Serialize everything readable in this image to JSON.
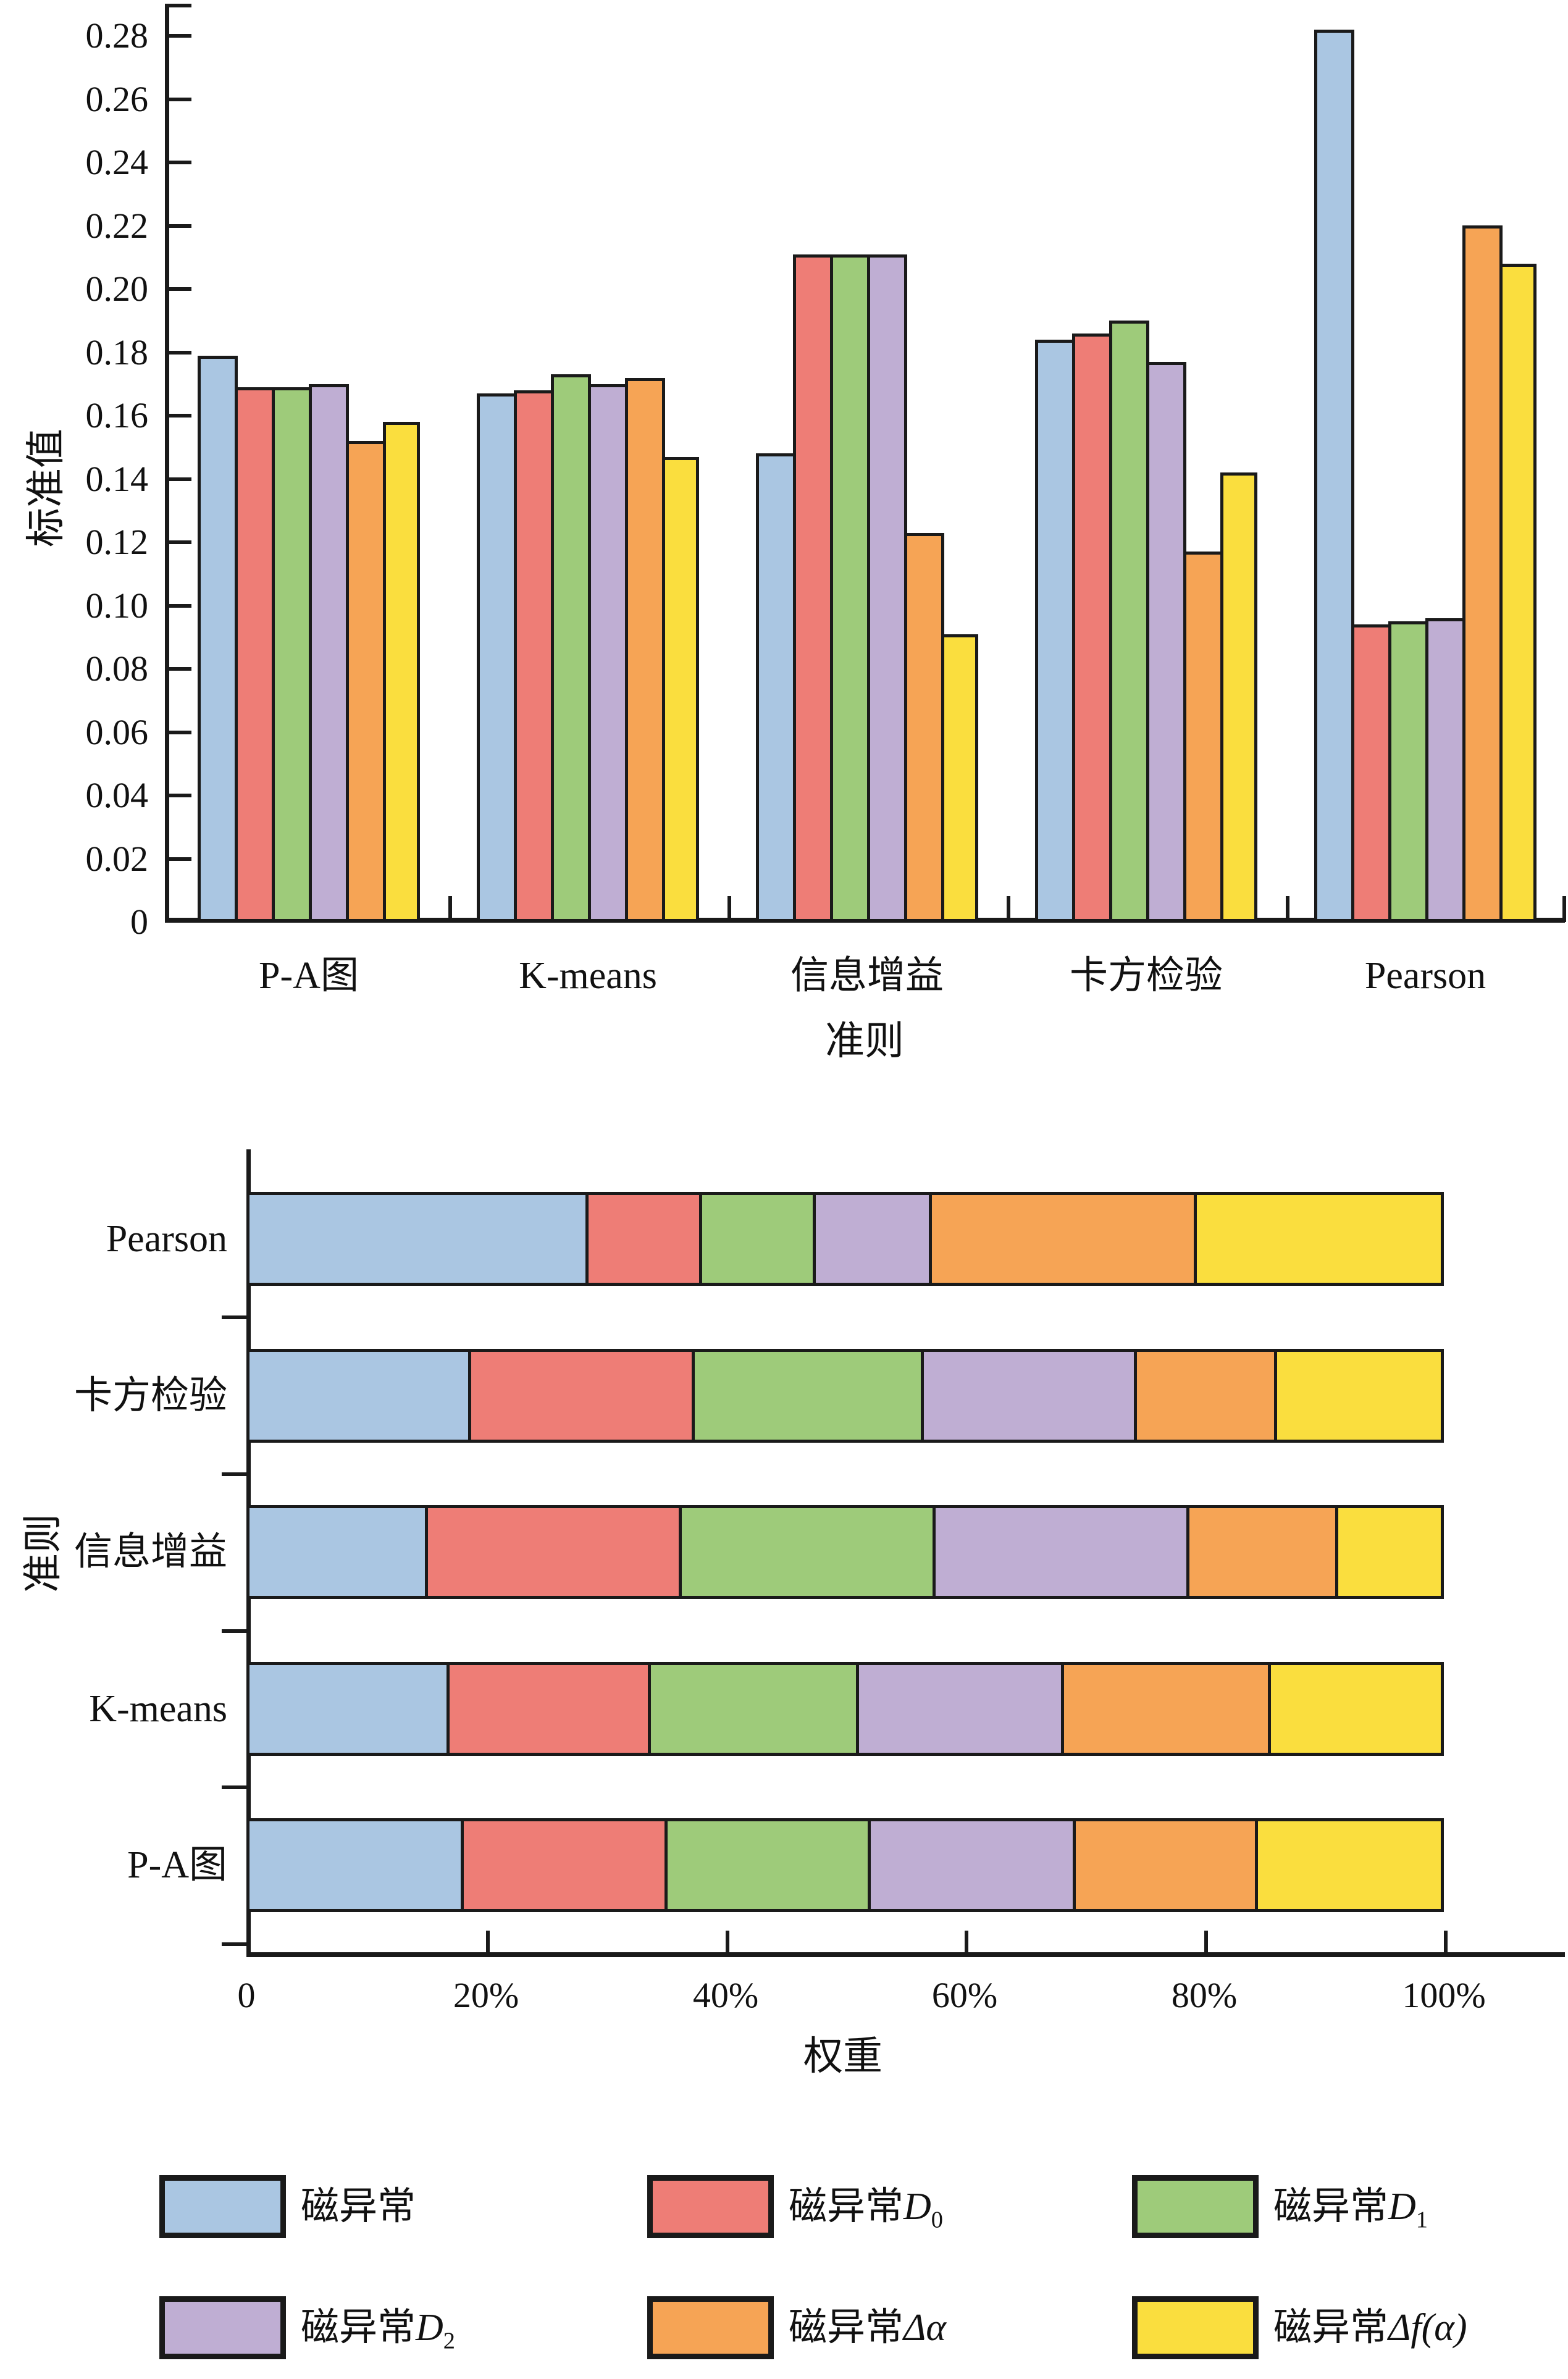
{
  "figure": {
    "background": "#ffffff",
    "axis_color": "#1a1a1a",
    "bar_border_color": "#1a1a1a",
    "series_colors": [
      "#aac6e2",
      "#ee7d76",
      "#9ecb7a",
      "#bfaed3",
      "#f6a455",
      "#fade3e"
    ]
  },
  "chart_data": [
    {
      "type": "bar",
      "orientation": "vertical-grouped",
      "title": "",
      "xlabel": "准则",
      "ylabel": "标准值",
      "categories": [
        "P-A图",
        "K-means",
        "信息增益",
        "卡方检验",
        "Pearson"
      ],
      "series": [
        {
          "name": "磁异常",
          "values": [
            0.179,
            0.167,
            0.148,
            0.184,
            0.282
          ]
        },
        {
          "name": "磁异常D0",
          "values": [
            0.169,
            0.168,
            0.211,
            0.186,
            0.094
          ]
        },
        {
          "name": "磁异常D1",
          "values": [
            0.169,
            0.173,
            0.211,
            0.19,
            0.095
          ]
        },
        {
          "name": "磁异常D2",
          "values": [
            0.17,
            0.17,
            0.211,
            0.177,
            0.096
          ]
        },
        {
          "name": "磁异常Δα",
          "values": [
            0.152,
            0.172,
            0.123,
            0.117,
            0.22
          ]
        },
        {
          "name": "磁异常Δf(α)",
          "values": [
            0.158,
            0.147,
            0.091,
            0.142,
            0.208
          ]
        }
      ],
      "ylim": [
        0,
        0.29
      ],
      "yticks": [
        "0",
        "0.02",
        "0.04",
        "0.06",
        "0.08",
        "0.10",
        "0.12",
        "0.14",
        "0.16",
        "0.18",
        "0.20",
        "0.22",
        "0.24",
        "0.26",
        "0.28"
      ],
      "grid": false,
      "legend_position": "bottom-of-figure"
    },
    {
      "type": "bar",
      "orientation": "horizontal-stacked",
      "title": "",
      "xlabel": "权重",
      "ylabel": "准则",
      "categories": [
        "Pearson",
        "卡方检验",
        "信息增益",
        "K-means",
        "P-A图"
      ],
      "series": [
        {
          "name": "磁异常",
          "values": [
            28.3,
            18.5,
            14.9,
            16.7,
            17.9
          ]
        },
        {
          "name": "磁异常D0",
          "values": [
            9.5,
            18.7,
            21.2,
            16.8,
            17.0
          ]
        },
        {
          "name": "磁异常D1",
          "values": [
            9.5,
            19.1,
            21.2,
            17.4,
            17.0
          ]
        },
        {
          "name": "磁异常D2",
          "values": [
            9.7,
            17.8,
            21.2,
            17.1,
            17.1
          ]
        },
        {
          "name": "磁异常Δα",
          "values": [
            22.1,
            11.7,
            12.4,
            17.3,
            15.2
          ]
        },
        {
          "name": "磁异常Δf(α)",
          "values": [
            20.9,
            14.2,
            9.1,
            14.7,
            15.8
          ]
        }
      ],
      "xlim": [
        0,
        100
      ],
      "xticks": [
        "0",
        "20%",
        "40%",
        "60%",
        "80%",
        "100%"
      ],
      "unit": "percent",
      "grid": false
    }
  ],
  "legend": {
    "items": [
      {
        "text": "磁异常",
        "math": "",
        "sub": ""
      },
      {
        "text": "磁异常",
        "math": "D",
        "sub": "0"
      },
      {
        "text": "磁异常",
        "math": "D",
        "sub": "1"
      },
      {
        "text": "磁异常",
        "math": "D",
        "sub": "2"
      },
      {
        "text": "磁异常",
        "math": "Δα",
        "sub": ""
      },
      {
        "text": "磁异常",
        "math": "Δf(α)",
        "sub": ""
      }
    ]
  }
}
